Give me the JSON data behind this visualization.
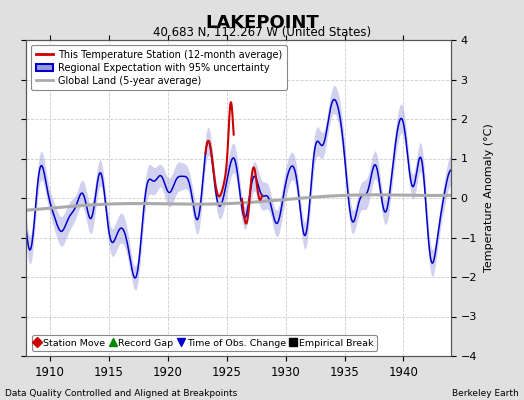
{
  "title": "LAKEPOINT",
  "subtitle": "40.683 N, 112.267 W (United States)",
  "ylabel": "Temperature Anomaly (°C)",
  "xlabel_bottom_left": "Data Quality Controlled and Aligned at Breakpoints",
  "xlabel_bottom_right": "Berkeley Earth",
  "xlim": [
    1908,
    1944
  ],
  "ylim": [
    -4,
    4
  ],
  "yticks": [
    -4,
    -3,
    -2,
    -1,
    0,
    1,
    2,
    3,
    4
  ],
  "xticks": [
    1910,
    1915,
    1920,
    1925,
    1930,
    1935,
    1940
  ],
  "background_color": "#e0e0e0",
  "plot_bg_color": "#ffffff",
  "grid_color": "#cccccc",
  "blue_line_color": "#0000cc",
  "blue_fill_color": "#9999dd",
  "red_line_color": "#cc0000",
  "gray_line_color": "#aaaaaa",
  "legend_items": [
    {
      "label": "This Temperature Station (12-month average)"
    },
    {
      "label": "Regional Expectation with 95% uncertainty"
    },
    {
      "label": "Global Land (5-year average)"
    }
  ],
  "bottom_legend": [
    {
      "label": "Station Move",
      "color": "#cc0000",
      "marker": "D"
    },
    {
      "label": "Record Gap",
      "color": "#008800",
      "marker": "^"
    },
    {
      "label": "Time of Obs. Change",
      "color": "#0000cc",
      "marker": "v"
    },
    {
      "label": "Empirical Break",
      "color": "#000000",
      "marker": "s"
    }
  ]
}
